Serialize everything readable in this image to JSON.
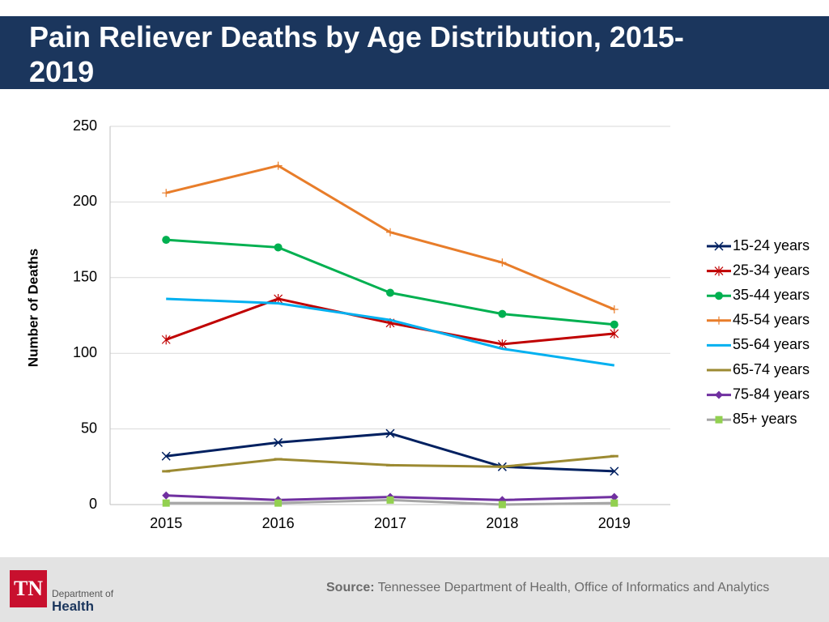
{
  "chart_data": {
    "type": "line",
    "title": "Pain Reliever Deaths by Age Distribution, 2015-2019",
    "y_label": "Number of Deaths",
    "categories": [
      "2015",
      "2016",
      "2017",
      "2018",
      "2019"
    ],
    "ylim": [
      0,
      250
    ],
    "yticks": [
      0,
      50,
      100,
      150,
      200,
      250
    ],
    "grid": true,
    "legend": "right",
    "series": [
      {
        "name": "15-24 years",
        "color": "#002060",
        "marker": "x",
        "values": [
          32,
          41,
          47,
          25,
          22
        ]
      },
      {
        "name": "25-34 years",
        "color": "#c00000",
        "marker": "star",
        "values": [
          109,
          136,
          120,
          106,
          113
        ]
      },
      {
        "name": "35-44 years",
        "color": "#00b050",
        "marker": "circle",
        "values": [
          175,
          170,
          140,
          126,
          119
        ]
      },
      {
        "name": "45-54 years",
        "color": "#e87d2a",
        "marker": "plus",
        "values": [
          206,
          224,
          180,
          160,
          129
        ]
      },
      {
        "name": "55-64 years",
        "color": "#00b0f0",
        "marker": "none",
        "values": [
          136,
          133,
          122,
          103,
          92
        ]
      },
      {
        "name": "65-74 years",
        "color": "#9c8a32",
        "marker": "dash",
        "values": [
          22,
          30,
          26,
          25,
          32
        ]
      },
      {
        "name": "75-84 years",
        "color": "#7030a0",
        "marker": "diamond",
        "values": [
          6,
          3,
          5,
          3,
          5
        ]
      },
      {
        "name": "85+ years",
        "color": "#a6a6a6",
        "marker": "square",
        "marker_color": "#92d050",
        "values": [
          1,
          1,
          3,
          0,
          1
        ]
      }
    ]
  },
  "footer": {
    "source_label": "Source:",
    "source_text": "Tennessee Department of Health, Office of Informatics and Analytics"
  },
  "logo": {
    "abbr": "TN",
    "line1": "Department of",
    "line2": "Health"
  }
}
